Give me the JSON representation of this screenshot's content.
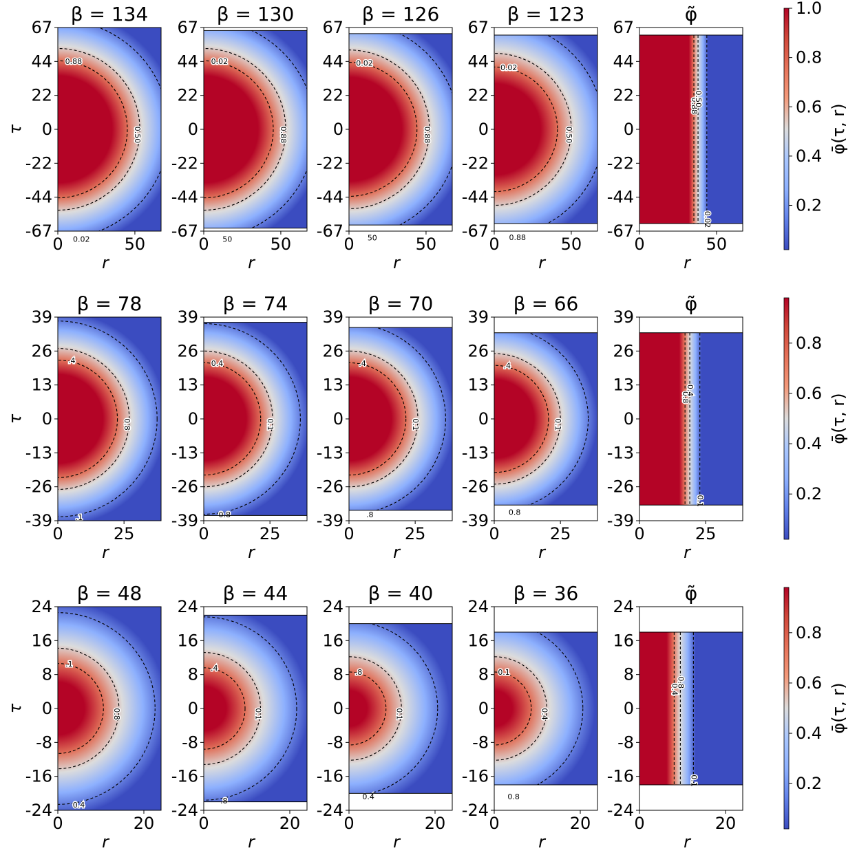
{
  "chart_data": {
    "type": "heatmap",
    "colormap": "coolwarm",
    "xlabel": "r",
    "ylabel": "τ",
    "colorbar_label": "φ̄(τ, r)",
    "rows": [
      {
        "ylim": [
          -67,
          67
        ],
        "xlim": [
          0,
          67
        ],
        "yticks": [
          "67",
          "44",
          "22",
          "0",
          "-22",
          "-44",
          "-67"
        ],
        "xticks": [
          "0",
          "50"
        ],
        "colorbar_ticks": [
          "1.0",
          "0.8",
          "0.6",
          "0.4",
          "0.2"
        ],
        "colorbar_range": [
          0.02,
          1.0
        ],
        "panels": [
          {
            "title": "β = 134",
            "half_height": 67,
            "radius": 55,
            "width": 9,
            "contours": [
              "0.88",
              "0.50",
              "0.02"
            ],
            "label_positions": [
              "0.02",
              "0.50",
              "0.88"
            ]
          },
          {
            "title": "β = 130",
            "half_height": 65,
            "radius": 55,
            "width": 9,
            "contours": [
              "0.88",
              "0.50",
              "0.02"
            ],
            "label_positions": [
              "50",
              "0.88",
              "0.02"
            ]
          },
          {
            "title": "β = 126",
            "half_height": 63,
            "radius": 54,
            "width": 9,
            "contours": [
              "0.88",
              "0.50",
              "0.02"
            ],
            "label_positions": [
              "50",
              "0.88",
              "0.02"
            ]
          },
          {
            "title": "β = 123",
            "half_height": 62,
            "radius": 52,
            "width": 10,
            "contours": [
              "0.88",
              "0.50",
              "0.02"
            ],
            "label_positions": [
              "0.88",
              "0.50",
              "0.02"
            ]
          },
          {
            "title": "φ̃",
            "half_height": 62,
            "radius": 38,
            "width": 3,
            "flat": true,
            "contours": [
              "0.88",
              "0.50",
              "0.02"
            ],
            "label_positions": [
              "0.88",
              "0.50",
              "0.02"
            ]
          }
        ]
      },
      {
        "ylim": [
          -39,
          39
        ],
        "xlim": [
          0,
          39
        ],
        "yticks": [
          "39",
          "26",
          "13",
          "0",
          "-13",
          "-26",
          "-39"
        ],
        "xticks": [
          "0",
          "25"
        ],
        "colorbar_ticks": [
          "0.8",
          "0.6",
          "0.4",
          "0.2"
        ],
        "colorbar_range": [
          0.02,
          0.98
        ],
        "panels": [
          {
            "title": "β = 78",
            "half_height": 39,
            "radius": 28,
            "width": 5,
            "contours": [
              "0.8",
              "0.4",
              "0.1"
            ],
            "label_positions": [
              ".1",
              "0.8",
              ".4"
            ]
          },
          {
            "title": "β = 74",
            "half_height": 37,
            "radius": 27,
            "width": 5,
            "contours": [
              "0.8",
              "0.4",
              "0.1"
            ],
            "label_positions": [
              "0.8",
              "0.1",
              "0.4"
            ]
          },
          {
            "title": "β = 70",
            "half_height": 35,
            "radius": 27,
            "width": 5,
            "contours": [
              "0.8",
              "0.4",
              "0.1"
            ],
            "label_positions": [
              ".8",
              "0.1",
              ".4"
            ]
          },
          {
            "title": "β = 66",
            "half_height": 33,
            "radius": 26,
            "width": 5,
            "contours": [
              "0.8",
              "0.4",
              "0.1"
            ],
            "label_positions": [
              "0.8",
              "0.1",
              ".4"
            ]
          },
          {
            "title": "φ̃",
            "half_height": 33,
            "radius": 19,
            "width": 2,
            "flat": true,
            "contours": [
              "0.8",
              "0.4",
              "0.1"
            ],
            "label_positions": [
              "0.8",
              "0.4",
              "0.1"
            ]
          }
        ]
      },
      {
        "ylim": [
          -24,
          24
        ],
        "xlim": [
          0,
          24
        ],
        "yticks": [
          "24",
          "16",
          "8",
          "0",
          "-8",
          "-16",
          "-24"
        ],
        "xticks": [
          "0",
          "20"
        ],
        "colorbar_ticks": [
          "0.8",
          "0.6",
          "0.4",
          "0.2"
        ],
        "colorbar_range": [
          0.02,
          0.98
        ],
        "panels": [
          {
            "title": "β = 48",
            "half_height": 24,
            "radius": 15,
            "width": 4,
            "contours": [
              "0.8",
              "0.4",
              "0.1"
            ],
            "label_positions": [
              "0.4",
              "0.8",
              ".1"
            ]
          },
          {
            "title": "β = 44",
            "half_height": 22,
            "radius": 14,
            "width": 4,
            "contours": [
              "0.8",
              "0.4",
              "0.1"
            ],
            "label_positions": [
              ".8",
              "0.1",
              ".4"
            ]
          },
          {
            "title": "β = 40",
            "half_height": 20,
            "radius": 13,
            "width": 4,
            "contours": [
              "0.8",
              "0.4",
              "0.1"
            ],
            "label_positions": [
              "0.4",
              "0.1",
              ".8"
            ]
          },
          {
            "title": "β = 36",
            "half_height": 18,
            "radius": 13,
            "width": 4,
            "contours": [
              "0.8",
              "0.4",
              "0.1"
            ],
            "label_positions": [
              "0.8",
              "0.4",
              "0.1"
            ]
          },
          {
            "title": "φ̃",
            "half_height": 18,
            "radius": 9.5,
            "width": 1.6,
            "flat": true,
            "contours": [
              "0.8",
              "0.4",
              "0.1"
            ],
            "label_positions": [
              "0.4",
              "0.8",
              "0.1"
            ]
          }
        ]
      }
    ]
  }
}
